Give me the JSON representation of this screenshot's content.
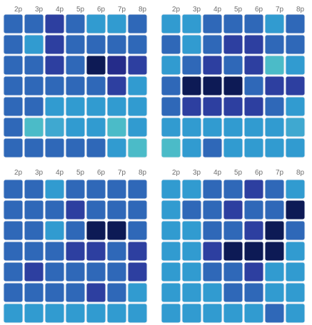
{
  "chart_data": [
    {
      "type": "heatmap",
      "x_tick_labels": [
        "2p",
        "3p",
        "4p",
        "5p",
        "6p",
        "7p",
        "8p"
      ],
      "levels": [
        [
          4,
          4,
          5,
          4,
          3,
          3,
          4
        ],
        [
          4,
          3,
          5,
          4,
          4,
          4,
          4
        ],
        [
          4,
          4,
          5,
          4,
          7,
          6,
          5
        ],
        [
          4,
          4,
          4,
          4,
          4,
          5,
          3
        ],
        [
          4,
          4,
          3,
          3,
          3,
          3,
          3
        ],
        [
          4,
          1,
          2,
          3,
          3,
          1,
          3
        ],
        [
          4,
          4,
          4,
          4,
          4,
          3,
          1
        ]
      ]
    },
    {
      "type": "heatmap",
      "x_tick_labels": [
        "2p",
        "3p",
        "4p",
        "5p",
        "6p",
        "7p",
        "8p"
      ],
      "levels": [
        [
          3,
          3,
          4,
          4,
          4,
          3,
          4
        ],
        [
          4,
          3,
          4,
          5,
          5,
          4,
          4
        ],
        [
          3,
          4,
          5,
          4,
          5,
          1,
          3
        ],
        [
          4,
          7,
          7,
          7,
          4,
          5,
          5
        ],
        [
          4,
          5,
          5,
          5,
          5,
          4,
          3
        ],
        [
          3,
          3,
          3,
          3,
          3,
          3,
          2
        ],
        [
          1,
          3,
          4,
          3,
          3,
          3,
          3
        ]
      ]
    },
    {
      "type": "heatmap",
      "x_tick_labels": [
        "2p",
        "3p",
        "4p",
        "5p",
        "6p",
        "7p",
        "8p"
      ],
      "levels": [
        [
          4,
          4,
          3,
          4,
          4,
          4,
          4
        ],
        [
          4,
          4,
          4,
          5,
          4,
          4,
          4
        ],
        [
          4,
          4,
          3,
          4,
          7,
          7,
          4
        ],
        [
          4,
          4,
          4,
          5,
          5,
          4,
          5
        ],
        [
          4,
          5,
          4,
          4,
          4,
          4,
          5
        ],
        [
          4,
          4,
          4,
          4,
          5,
          4,
          3
        ],
        [
          3,
          3,
          3,
          3,
          3,
          3,
          3
        ]
      ]
    },
    {
      "type": "heatmap",
      "x_tick_labels": [
        "2p",
        "3p",
        "4p",
        "5p",
        "6p",
        "7p",
        "8p"
      ],
      "levels": [
        [
          3,
          3,
          4,
          4,
          5,
          4,
          3
        ],
        [
          3,
          4,
          4,
          5,
          4,
          4,
          7
        ],
        [
          3,
          3,
          4,
          4,
          5,
          7,
          4
        ],
        [
          3,
          3,
          5,
          7,
          7,
          7,
          3
        ],
        [
          3,
          3,
          4,
          4,
          5,
          3,
          3
        ],
        [
          3,
          3,
          3,
          4,
          4,
          3,
          3
        ],
        [
          3,
          3,
          3,
          3,
          3,
          4,
          3
        ]
      ]
    }
  ],
  "colors": {
    "palette": [
      "#ffffff",
      "#4bbbc8",
      "#3fa8d0",
      "#319bd0",
      "#2f68b8",
      "#2d3fa0",
      "#252c8a",
      "#0d1a55"
    ],
    "cell_border": "#e8eef4",
    "tick_label": "#6f6f6f"
  }
}
